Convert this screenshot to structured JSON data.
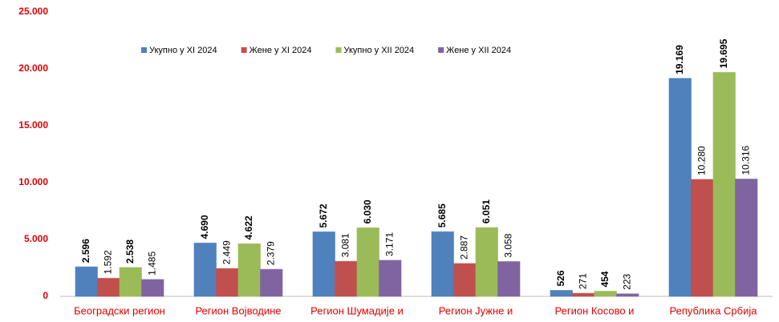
{
  "chart_data": {
    "type": "bar",
    "categories": [
      "Београдски регион",
      "Регион Војводине",
      "Регион Шумадије и",
      "Регион Јужне и",
      "Регион Косово и",
      "Република Србија"
    ],
    "series": [
      {
        "name": "Укупно у XI 2024",
        "color": "#4f81bd",
        "values": [
          2596,
          4690,
          5672,
          5685,
          526,
          19169
        ],
        "value_labels": [
          "2.596",
          "4.690",
          "5.672",
          "5.685",
          "526",
          "19.169"
        ]
      },
      {
        "name": "Жене у XI 2024",
        "color": "#c0504d",
        "values": [
          1592,
          2449,
          3081,
          2887,
          271,
          10280
        ],
        "value_labels": [
          "1.592",
          "2.449",
          "3.081",
          "2.887",
          "271",
          "10.280"
        ]
      },
      {
        "name": "Укупно у XII 2024",
        "color": "#9bbb59",
        "values": [
          2538,
          4622,
          6030,
          6051,
          454,
          19695
        ],
        "value_labels": [
          "2.538",
          "4.622",
          "6.030",
          "6.051",
          "454",
          "19.695"
        ]
      },
      {
        "name": "Жене у XII 2024",
        "color": "#8064a2",
        "values": [
          1485,
          2379,
          3171,
          3058,
          223,
          10316
        ],
        "value_labels": [
          "1.485",
          "2.379",
          "3.171",
          "3.058",
          "223",
          "10.316"
        ]
      }
    ],
    "ylim": [
      0,
      25000
    ],
    "yticks": [
      0,
      {
        "value": 5000,
        "label": "5.000"
      },
      {
        "value": 10000,
        "label": "10.000"
      },
      {
        "value": 15000,
        "label": "15.000"
      },
      {
        "value": 20000,
        "label": "20.000"
      },
      {
        "value": 25000,
        "label": "25.000"
      }
    ],
    "grid": false,
    "legend": "top"
  }
}
